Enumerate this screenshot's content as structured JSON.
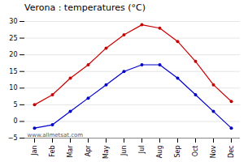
{
  "chart_data": {
    "type": "line",
    "title": "Verona : temperatures (°C)",
    "categories": [
      "Jan",
      "Feb",
      "Mar",
      "Apr",
      "May",
      "Jun",
      "Jul",
      "Aug",
      "Sep",
      "Oct",
      "Nov",
      "Dec"
    ],
    "series": [
      {
        "color": "#cc0000",
        "values": [
          5,
          8,
          13,
          17,
          22,
          26,
          29,
          28,
          24,
          18,
          11,
          6
        ]
      },
      {
        "color": "#0000cc",
        "values": [
          -2,
          -1,
          3,
          7,
          11,
          15,
          17,
          17,
          13,
          8,
          3,
          -2
        ]
      }
    ],
    "marker": "circle",
    "ylim": [
      -5,
      30
    ],
    "yticks": [
      -5,
      0,
      5,
      10,
      15,
      20,
      25,
      30
    ],
    "grid": true,
    "annotation": "www.allmetsat.com"
  }
}
